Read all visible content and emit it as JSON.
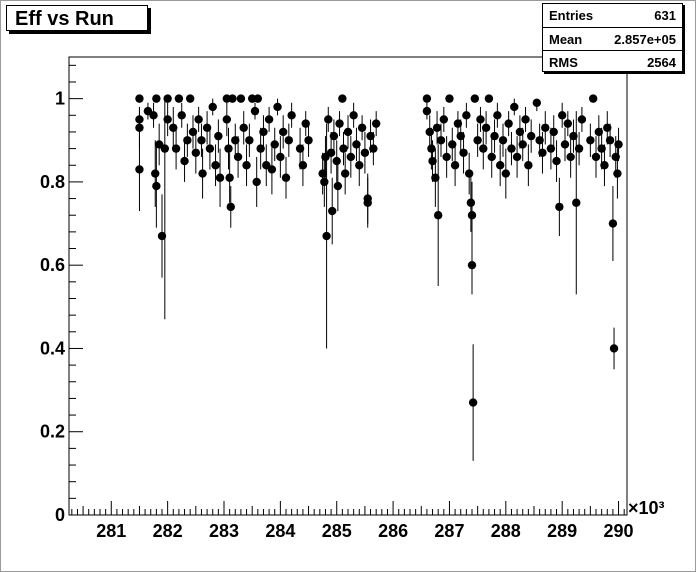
{
  "title": "Eff vs Run",
  "stats": [
    {
      "label": "Entries",
      "value": "631"
    },
    {
      "label": "Mean",
      "value": "2.857e+05"
    },
    {
      "label": "RMS",
      "value": "2564"
    }
  ],
  "chart_data": {
    "type": "scatter",
    "title": "Eff vs Run",
    "xlabel": "",
    "ylabel": "",
    "x_multiplier_label": "×10³",
    "xlim": [
      280.25,
      290.15
    ],
    "ylim": [
      0,
      1.1
    ],
    "xticks": [
      281,
      282,
      283,
      284,
      285,
      286,
      287,
      288,
      289,
      290
    ],
    "yticks": [
      0,
      0.2,
      0.4,
      0.6,
      0.8,
      1
    ],
    "ytick_labels": [
      "0",
      "0.2",
      "0.4",
      "0.6",
      "0.8",
      "1"
    ],
    "marker_color": "#000000",
    "error_bars": true,
    "points": [
      [
        281.5,
        1.0,
        0.0
      ],
      [
        281.5,
        0.95,
        0.03
      ],
      [
        281.5,
        0.93,
        0.05
      ],
      [
        281.5,
        0.83,
        0.1
      ],
      [
        281.65,
        0.97,
        0.02
      ],
      [
        281.75,
        0.96,
        0.03
      ],
      [
        281.78,
        0.82,
        0.08
      ],
      [
        281.8,
        0.79,
        0.1
      ],
      [
        281.8,
        1.0,
        0.0
      ],
      [
        281.85,
        0.89,
        0.05
      ],
      [
        281.9,
        0.67,
        0.1
      ],
      [
        281.95,
        0.88,
        0.41
      ],
      [
        282.0,
        1.0,
        0.0
      ],
      [
        282.0,
        0.95,
        0.04
      ],
      [
        282.1,
        0.93,
        0.05
      ],
      [
        282.15,
        0.88,
        0.05
      ],
      [
        282.2,
        1.0,
        0.0
      ],
      [
        282.25,
        0.96,
        0.03
      ],
      [
        282.3,
        0.85,
        0.05
      ],
      [
        282.35,
        0.9,
        0.04
      ],
      [
        282.4,
        1.0,
        0.0
      ],
      [
        282.45,
        0.92,
        0.04
      ],
      [
        282.5,
        0.87,
        0.05
      ],
      [
        282.55,
        0.95,
        0.03
      ],
      [
        282.6,
        0.9,
        0.04
      ],
      [
        282.62,
        0.82,
        0.06
      ],
      [
        282.7,
        0.93,
        0.04
      ],
      [
        282.75,
        0.88,
        0.05
      ],
      [
        282.8,
        0.98,
        0.02
      ],
      [
        282.85,
        0.84,
        0.05
      ],
      [
        282.9,
        0.91,
        0.04
      ],
      [
        282.93,
        0.81,
        0.07
      ],
      [
        283.05,
        1.0,
        0.0
      ],
      [
        283.05,
        0.95,
        0.04
      ],
      [
        283.08,
        0.88,
        0.05
      ],
      [
        283.1,
        0.81,
        0.06
      ],
      [
        283.12,
        0.74,
        0.05
      ],
      [
        283.15,
        1.0,
        0.0
      ],
      [
        283.2,
        0.9,
        0.04
      ],
      [
        283.25,
        0.86,
        0.05
      ],
      [
        283.3,
        1.0,
        0.0
      ],
      [
        283.35,
        0.93,
        0.04
      ],
      [
        283.4,
        0.84,
        0.05
      ],
      [
        283.45,
        0.9,
        0.04
      ],
      [
        283.5,
        1.0,
        0.0
      ],
      [
        283.55,
        0.97,
        0.02
      ],
      [
        283.58,
        0.8,
        0.06
      ],
      [
        283.6,
        1.0,
        0.0
      ],
      [
        283.65,
        0.88,
        0.05
      ],
      [
        283.7,
        0.92,
        0.04
      ],
      [
        283.75,
        0.84,
        0.05
      ],
      [
        283.8,
        0.95,
        0.03
      ],
      [
        283.85,
        0.83,
        0.06
      ],
      [
        283.9,
        0.89,
        0.04
      ],
      [
        283.95,
        0.98,
        0.02
      ],
      [
        284.0,
        0.86,
        0.05
      ],
      [
        284.05,
        0.92,
        0.04
      ],
      [
        284.1,
        0.81,
        0.05
      ],
      [
        284.15,
        0.9,
        0.04
      ],
      [
        284.2,
        0.96,
        0.03
      ],
      [
        284.35,
        0.88,
        0.05
      ],
      [
        284.4,
        0.84,
        0.05
      ],
      [
        284.45,
        0.94,
        0.03
      ],
      [
        284.5,
        0.9,
        0.04
      ],
      [
        284.75,
        0.82,
        0.05
      ],
      [
        284.78,
        0.8,
        0.06
      ],
      [
        284.8,
        0.86,
        0.05
      ],
      [
        284.82,
        0.67,
        0.27
      ],
      [
        284.85,
        0.95,
        0.03
      ],
      [
        284.9,
        0.87,
        0.05
      ],
      [
        284.92,
        0.73,
        0.08
      ],
      [
        284.95,
        0.91,
        0.04
      ],
      [
        285.0,
        0.85,
        0.05
      ],
      [
        285.02,
        0.79,
        0.06
      ],
      [
        285.05,
        0.94,
        0.03
      ],
      [
        285.1,
        1.0,
        0.0
      ],
      [
        285.12,
        0.88,
        0.04
      ],
      [
        285.15,
        0.82,
        0.05
      ],
      [
        285.2,
        0.92,
        0.04
      ],
      [
        285.25,
        0.86,
        0.05
      ],
      [
        285.3,
        0.96,
        0.03
      ],
      [
        285.35,
        0.89,
        0.04
      ],
      [
        285.4,
        0.84,
        0.05
      ],
      [
        285.45,
        0.93,
        0.03
      ],
      [
        285.5,
        0.87,
        0.05
      ],
      [
        285.55,
        0.76,
        0.06
      ],
      [
        285.55,
        0.75,
        0.06
      ],
      [
        285.6,
        0.91,
        0.04
      ],
      [
        285.65,
        0.88,
        0.04
      ],
      [
        285.7,
        0.94,
        0.03
      ],
      [
        286.6,
        1.0,
        0.0
      ],
      [
        286.6,
        0.97,
        0.02
      ],
      [
        286.65,
        0.92,
        0.04
      ],
      [
        286.68,
        0.88,
        0.05
      ],
      [
        286.7,
        0.85,
        0.05
      ],
      [
        286.75,
        0.81,
        0.07
      ],
      [
        286.78,
        0.93,
        0.04
      ],
      [
        286.8,
        0.72,
        0.17
      ],
      [
        286.85,
        0.9,
        0.04
      ],
      [
        286.9,
        0.95,
        0.03
      ],
      [
        286.95,
        0.86,
        0.05
      ],
      [
        287.0,
        1.0,
        0.0
      ],
      [
        287.05,
        0.89,
        0.04
      ],
      [
        287.1,
        0.84,
        0.05
      ],
      [
        287.15,
        0.94,
        0.03
      ],
      [
        287.2,
        0.91,
        0.04
      ],
      [
        287.25,
        0.87,
        0.05
      ],
      [
        287.3,
        0.96,
        0.03
      ],
      [
        287.35,
        0.82,
        0.05
      ],
      [
        287.38,
        0.75,
        0.07
      ],
      [
        287.4,
        0.72,
        0.08
      ],
      [
        287.4,
        0.6,
        0.07
      ],
      [
        287.42,
        0.27,
        0.14
      ],
      [
        287.45,
        1.0,
        0.0
      ],
      [
        287.5,
        0.9,
        0.04
      ],
      [
        287.55,
        0.95,
        0.03
      ],
      [
        287.6,
        0.88,
        0.05
      ],
      [
        287.65,
        0.93,
        0.04
      ],
      [
        287.7,
        1.0,
        0.0
      ],
      [
        287.75,
        0.86,
        0.05
      ],
      [
        287.8,
        0.91,
        0.04
      ],
      [
        287.85,
        0.96,
        0.03
      ],
      [
        287.9,
        0.84,
        0.05
      ],
      [
        287.95,
        0.9,
        0.04
      ],
      [
        288.0,
        0.82,
        0.06
      ],
      [
        288.05,
        0.94,
        0.03
      ],
      [
        288.1,
        0.88,
        0.04
      ],
      [
        288.15,
        0.98,
        0.02
      ],
      [
        288.2,
        0.86,
        0.05
      ],
      [
        288.25,
        0.92,
        0.04
      ],
      [
        288.3,
        0.89,
        0.04
      ],
      [
        288.35,
        0.95,
        0.03
      ],
      [
        288.4,
        0.84,
        0.05
      ],
      [
        288.45,
        0.91,
        0.04
      ],
      [
        288.55,
        0.99,
        0.02
      ],
      [
        288.6,
        0.9,
        0.04
      ],
      [
        288.65,
        0.87,
        0.05
      ],
      [
        288.7,
        0.93,
        0.04
      ],
      [
        288.8,
        0.88,
        0.05
      ],
      [
        288.85,
        0.92,
        0.04
      ],
      [
        288.9,
        0.85,
        0.05
      ],
      [
        288.95,
        0.74,
        0.07
      ],
      [
        289.0,
        0.96,
        0.03
      ],
      [
        289.05,
        0.89,
        0.04
      ],
      [
        289.1,
        0.94,
        0.03
      ],
      [
        289.15,
        0.86,
        0.05
      ],
      [
        289.2,
        0.91,
        0.04
      ],
      [
        289.25,
        0.75,
        0.22
      ],
      [
        289.3,
        0.88,
        0.04
      ],
      [
        289.35,
        0.95,
        0.03
      ],
      [
        289.5,
        0.9,
        0.04
      ],
      [
        289.55,
        1.0,
        0.0
      ],
      [
        289.6,
        0.86,
        0.05
      ],
      [
        289.65,
        0.92,
        0.04
      ],
      [
        289.7,
        0.88,
        0.05
      ],
      [
        289.75,
        0.84,
        0.05
      ],
      [
        289.8,
        0.93,
        0.04
      ],
      [
        289.85,
        0.9,
        0.04
      ],
      [
        289.9,
        0.7,
        0.09
      ],
      [
        289.92,
        0.4,
        0.05
      ],
      [
        289.95,
        0.86,
        0.05
      ],
      [
        289.98,
        0.82,
        0.06
      ],
      [
        290.0,
        0.89,
        0.04
      ]
    ]
  }
}
